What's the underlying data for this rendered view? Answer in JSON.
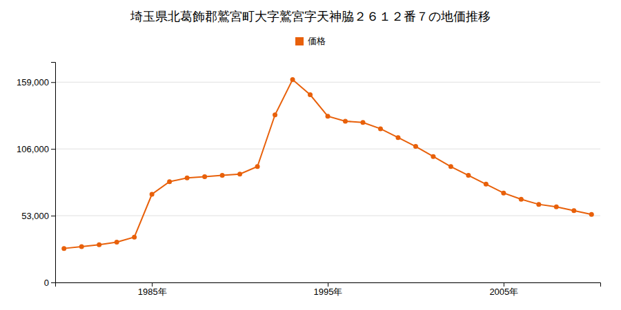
{
  "chart_data": {
    "type": "line",
    "title": "埼玉県北葛飾郡鷲宮町大字鷲宮字天神脇２６１２番７の地価推移",
    "x": [
      1980,
      1981,
      1982,
      1983,
      1984,
      1985,
      1986,
      1987,
      1988,
      1989,
      1990,
      1991,
      1992,
      1993,
      1994,
      1995,
      1996,
      1997,
      1998,
      1999,
      2000,
      2001,
      2002,
      2003,
      2004,
      2005,
      2006,
      2007,
      2008,
      2009,
      2010
    ],
    "series": [
      {
        "name": "価格",
        "color": "#E8600A",
        "values": [
          27000,
          28500,
          30000,
          32000,
          36000,
          70000,
          80000,
          83000,
          84000,
          85000,
          86000,
          92000,
          133000,
          161000,
          149000,
          132000,
          128000,
          127000,
          122000,
          115000,
          108000,
          100000,
          92000,
          85000,
          78000,
          71000,
          66000,
          62000,
          60000,
          57000,
          54000
        ]
      }
    ],
    "xlim": [
      1979.5,
      2010.5
    ],
    "xticks": [
      {
        "value": 1985,
        "label": "1985年"
      },
      {
        "value": 1995,
        "label": "1995年"
      },
      {
        "value": 2005,
        "label": "2005年"
      }
    ],
    "ylim": [
      0,
      175000
    ],
    "yticks": [
      0,
      {
        "value": 53000,
        "label": "53,000"
      },
      {
        "value": 106000,
        "label": "106,000"
      },
      {
        "value": 159000,
        "label": "159,000"
      }
    ],
    "grid": true,
    "legend": "top",
    "marker": "circle"
  }
}
